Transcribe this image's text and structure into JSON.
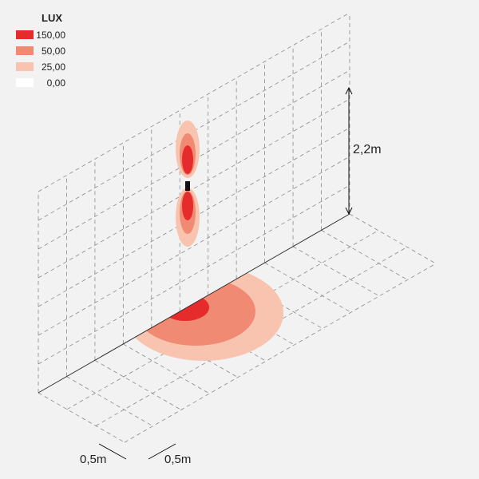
{
  "legend": {
    "title": "LUX",
    "items": [
      {
        "label": "150,00",
        "color": "#e52b2b"
      },
      {
        "label": "50,00",
        "color": "#f08a72"
      },
      {
        "label": "25,00",
        "color": "#f8c4b0"
      },
      {
        "label": "0,00",
        "color": "#ffffff"
      }
    ]
  },
  "dimensions": {
    "height": "2,2m",
    "grid_x": "0,5m",
    "grid_y": "0,5m"
  }
}
